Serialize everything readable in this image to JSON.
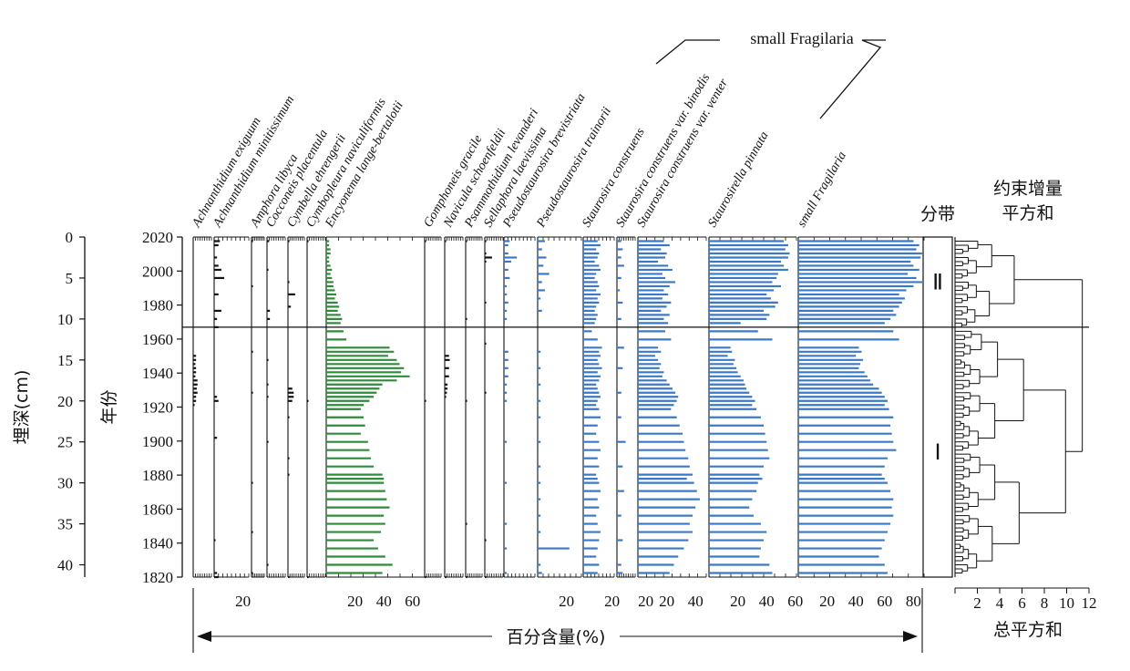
{
  "colors": {
    "ink": "#111111",
    "green": "#2e8b3a",
    "blue": "#3a78c9"
  },
  "labels": {
    "depth_axis": "埋深(cm)",
    "year_axis": "年份",
    "zone_col": "分带",
    "cluster_title": "约束增量\n平方和",
    "cluster_xlabel": "总平方和",
    "percent_label": "百分含量(%)",
    "small_fragilaria_bracket": "small Fragilaria"
  },
  "zones": [
    {
      "name": "Ⅱ",
      "from_cm": 0,
      "to_cm": 11
    },
    {
      "name": "Ⅰ",
      "from_cm": 11,
      "to_cm": 41.5
    }
  ],
  "chart_data": {
    "type": "bar",
    "title": "",
    "orientation": "horizontal",
    "depth_ticks_cm": [
      0,
      5,
      10,
      15,
      20,
      25,
      30,
      35,
      40
    ],
    "year_ticks": [
      2020,
      2000,
      1980,
      1960,
      1940,
      1920,
      1900,
      1880,
      1860,
      1840,
      1820
    ],
    "depth_range_cm": [
      0,
      41.5
    ],
    "year_range": [
      2020,
      1820
    ],
    "zone_boundary_cm": 11,
    "cluster_axis": {
      "ticks": [
        2,
        4,
        6,
        8,
        10,
        12
      ],
      "range": [
        0,
        12
      ]
    },
    "taxa": [
      {
        "name": "Achnanthidium exiguum",
        "color": "ink",
        "ticks": [],
        "xmax": 5,
        "depths": [
          14.5,
          15,
          15.5,
          16,
          16.5,
          17,
          17.5,
          18,
          18.5,
          19,
          19.5,
          20,
          20.5
        ],
        "values": [
          2,
          2,
          1.5,
          2,
          2,
          1.5,
          3,
          3,
          2.5,
          3,
          2,
          2,
          1
        ]
      },
      {
        "name": "Achnanthidium minitissimum",
        "color": "ink",
        "ticks": [
          20
        ],
        "xmax": 30,
        "depths": [
          0.5,
          1,
          2.5,
          3.5,
          4,
          5,
          7,
          9,
          10,
          11,
          19.5,
          20,
          24.5,
          37,
          41,
          41.5
        ],
        "values": [
          4,
          3,
          2,
          3,
          5,
          7,
          3,
          5,
          2,
          3,
          2,
          3,
          2,
          1,
          2,
          3
        ]
      },
      {
        "name": "Amphora libyca",
        "color": "ink",
        "ticks": [],
        "xmax": 8,
        "depths": [
          0.5,
          6,
          14,
          19,
          30,
          36,
          41
        ],
        "values": [
          1,
          1,
          1,
          1,
          1,
          1,
          1
        ]
      },
      {
        "name": "Cocconeis placentula",
        "color": "ink",
        "ticks": [],
        "xmax": 8,
        "depths": [
          0.5,
          4,
          9,
          10,
          15,
          18,
          19.5,
          25,
          40
        ],
        "values": [
          1.5,
          1,
          2,
          2,
          1,
          1,
          1,
          1,
          1
        ]
      },
      {
        "name": "Cymbella ehrengerii",
        "color": "ink",
        "ticks": [],
        "xmax": 8,
        "depths": [
          0.5,
          5.5,
          7,
          8.5,
          18.5,
          19,
          19.5,
          20,
          22,
          27,
          29,
          41.5
        ],
        "values": [
          1,
          1,
          5,
          2,
          3,
          4,
          4,
          3,
          1,
          1,
          1,
          1
        ]
      },
      {
        "name": "Cymbopleura naviculiformis",
        "color": "ink",
        "ticks": [],
        "xmax": 8,
        "depths": [
          0.5,
          20,
          41.5
        ],
        "values": [
          1,
          1,
          1
        ]
      },
      {
        "name": "Encyonema lange-bertalotii",
        "color": "green",
        "ticks": [
          20,
          40,
          60
        ],
        "xmax": 110,
        "depths": [
          0.5,
          1,
          1.5,
          2,
          2.5,
          3,
          3.5,
          4,
          4.5,
          5,
          5.5,
          6,
          6.5,
          7,
          7.5,
          8,
          8.5,
          9,
          9.5,
          10,
          10.5,
          11.5,
          12.5,
          13.5,
          14,
          14.5,
          15,
          15.5,
          16,
          16.5,
          17,
          17.5,
          18,
          18.5,
          19,
          19.5,
          20,
          20.5,
          21,
          22,
          23,
          24,
          25,
          26,
          27,
          28,
          29,
          29.5,
          30,
          31,
          32,
          33,
          34,
          35,
          36,
          37,
          38,
          39,
          40,
          41
        ],
        "values": [
          2,
          2,
          3,
          3,
          2,
          2,
          3,
          4,
          3,
          4,
          5,
          5,
          6,
          7,
          6,
          8,
          9,
          8,
          10,
          11,
          10,
          12,
          14,
          44,
          47,
          43,
          49,
          51,
          54,
          52,
          58,
          49,
          39,
          37,
          35,
          33,
          30,
          26,
          24,
          26,
          27,
          24,
          29,
          30,
          31,
          33,
          39,
          40,
          40,
          41,
          42,
          44,
          40,
          41,
          38,
          33,
          36,
          41,
          46,
          39
        ]
      },
      {
        "name": "Gomphoneis gracile",
        "color": "ink",
        "ticks": [],
        "xmax": 8,
        "depths": [
          0.5,
          20,
          41.5
        ],
        "values": [
          1,
          1,
          1
        ]
      },
      {
        "name": "Navicula schoenfeldii",
        "color": "ink",
        "ticks": [],
        "xmax": 8,
        "depths": [
          0.5,
          14.5,
          15,
          16,
          17,
          18,
          18.5,
          19,
          19.5,
          41.5
        ],
        "values": [
          1,
          3,
          3.5,
          3,
          3,
          2,
          2,
          1.5,
          1,
          1
        ]
      },
      {
        "name": "Psammothidium levanderi",
        "color": "ink",
        "ticks": [],
        "xmax": 8,
        "depths": [
          0.5,
          10,
          20,
          35,
          41.5
        ],
        "values": [
          1,
          1,
          1,
          1,
          1
        ]
      },
      {
        "name": "Sellaphora laevissima",
        "color": "ink",
        "ticks": [],
        "xmax": 8,
        "depths": [
          0.5,
          2,
          2.5,
          3,
          8,
          13,
          19,
          37,
          41.5
        ],
        "values": [
          1,
          1,
          5,
          1,
          1,
          1,
          1,
          1,
          1
        ]
      },
      {
        "name": "Pseudostaurosira brevistriata",
        "color": "blue",
        "ticks": [],
        "xmax": 16,
        "depths": [
          0.5,
          1,
          2,
          2.5,
          3,
          4,
          5,
          6,
          7,
          8,
          9,
          10,
          14,
          15,
          16,
          17,
          18,
          19,
          20,
          25,
          30,
          35,
          38,
          41
        ],
        "values": [
          4,
          3,
          3,
          9,
          5,
          3,
          4,
          2,
          2,
          3,
          2,
          2,
          3,
          3,
          3,
          3,
          2,
          2,
          2,
          2,
          2,
          2,
          2,
          2
        ]
      },
      {
        "name": "Pseudostaurosira trainorii",
        "color": "blue",
        "ticks": [
          20
        ],
        "xmax": 30,
        "depths": [
          0.5,
          1.5,
          2.5,
          3.5,
          4.5,
          5.5,
          6.5,
          7.5,
          9,
          14,
          16,
          18,
          20,
          22,
          25,
          28,
          30,
          32,
          34,
          36,
          38,
          40,
          41
        ],
        "values": [
          5,
          3,
          6,
          4,
          8,
          3,
          5,
          2,
          3,
          2,
          2,
          2,
          2,
          2,
          2,
          2,
          2,
          2,
          2,
          2,
          22,
          2,
          3
        ]
      },
      {
        "name": "Staurosira construens",
        "color": "blue",
        "ticks": [
          20
        ],
        "xmax": 30,
        "depths": [
          0.5,
          1,
          1.5,
          2,
          2.5,
          3,
          3.5,
          4,
          4.5,
          5,
          5.5,
          6,
          6.5,
          7,
          7.5,
          8,
          8.5,
          9,
          9.5,
          10,
          10.5,
          11.5,
          12.5,
          13.5,
          14,
          14.5,
          15,
          15.5,
          16,
          16.5,
          17,
          17.5,
          18,
          18.5,
          19,
          19.5,
          20,
          20.5,
          21,
          22,
          23,
          24,
          25,
          26,
          27,
          28,
          29,
          29.5,
          30,
          31,
          32,
          33,
          34,
          35,
          36,
          37,
          38,
          39,
          40,
          41
        ],
        "values": [
          10,
          12,
          9,
          11,
          10,
          8,
          11,
          12,
          9,
          8,
          10,
          11,
          9,
          12,
          10,
          11,
          9,
          8,
          10,
          9,
          8,
          6,
          10,
          13,
          11,
          12,
          10,
          11,
          13,
          10,
          12,
          11,
          9,
          10,
          11,
          12,
          10,
          9,
          11,
          12,
          10,
          9,
          11,
          12,
          10,
          11,
          9,
          10,
          11,
          12,
          10,
          11,
          9,
          10,
          12,
          11,
          10,
          9,
          11,
          10
        ]
      },
      {
        "name": "Staurosira construens var. binodis",
        "color": "blue",
        "ticks": [
          20
        ],
        "xmax": 30,
        "depths": [
          0.5,
          1.5,
          2.5,
          3.5,
          5,
          6.5,
          8,
          10,
          13.5,
          16,
          19,
          22,
          25,
          28,
          31,
          34,
          37,
          40,
          41
        ],
        "values": [
          3,
          4,
          3,
          5,
          3,
          2,
          4,
          3,
          5,
          4,
          3,
          3,
          6,
          4,
          5,
          3,
          4,
          3,
          4
        ]
      },
      {
        "name": "Staurosira construens var. venter",
        "color": "blue",
        "ticks": [
          20,
          40
        ],
        "xmax": 60,
        "depths": [
          0.5,
          1,
          1.5,
          2,
          2.5,
          3,
          3.5,
          4,
          4.5,
          5,
          5.5,
          6,
          6.5,
          7,
          7.5,
          8,
          8.5,
          9,
          9.5,
          10,
          10.5,
          11.5,
          12.5,
          13.5,
          14,
          14.5,
          15,
          15.5,
          16,
          16.5,
          17,
          17.5,
          18,
          18.5,
          19,
          19.5,
          20,
          20.5,
          21,
          22,
          23,
          24,
          25,
          26,
          27,
          28,
          29,
          29.5,
          30,
          31,
          32,
          33,
          34,
          35,
          36,
          37,
          38,
          39,
          40,
          41
        ],
        "values": [
          18,
          22,
          16,
          20,
          19,
          14,
          21,
          24,
          17,
          19,
          26,
          22,
          18,
          21,
          17,
          23,
          20,
          16,
          22,
          18,
          21,
          19,
          23,
          14,
          16,
          12,
          14,
          16,
          15,
          18,
          17,
          20,
          22,
          24,
          26,
          28,
          27,
          25,
          23,
          27,
          29,
          31,
          32,
          33,
          35,
          36,
          38,
          34,
          39,
          41,
          43,
          40,
          38,
          36,
          38,
          35,
          32,
          28,
          25,
          22
        ]
      },
      {
        "name": "Staurosirella pinnata",
        "color": "blue",
        "ticks": [
          20,
          40,
          60
        ],
        "xmax": 82,
        "depths": [
          0.5,
          1,
          1.5,
          2,
          2.5,
          3,
          3.5,
          4,
          4.5,
          5,
          5.5,
          6,
          6.5,
          7,
          7.5,
          8,
          8.5,
          9,
          9.5,
          10,
          10.5,
          11.5,
          12.5,
          13.5,
          14,
          14.5,
          15,
          15.5,
          16,
          16.5,
          17,
          17.5,
          18,
          18.5,
          19,
          19.5,
          20,
          20.5,
          21,
          22,
          23,
          24,
          25,
          26,
          27,
          28,
          29,
          29.5,
          30,
          31,
          32,
          33,
          34,
          35,
          36,
          37,
          38,
          39,
          40,
          41
        ],
        "values": [
          52,
          55,
          53,
          56,
          55,
          50,
          52,
          55,
          48,
          47,
          44,
          50,
          45,
          40,
          43,
          48,
          46,
          38,
          42,
          40,
          22,
          34,
          44,
          15,
          16,
          13,
          18,
          17,
          19,
          20,
          22,
          24,
          25,
          26,
          28,
          30,
          32,
          30,
          33,
          36,
          38,
          39,
          40,
          41,
          42,
          38,
          35,
          37,
          34,
          33,
          30,
          28,
          31,
          36,
          40,
          38,
          36,
          35,
          42,
          44
        ]
      },
      {
        "name": "small Fragilaria",
        "color": "blue",
        "ticks": [
          20,
          40,
          60,
          80
        ],
        "xmax": 100,
        "depths": [
          0.5,
          1,
          1.5,
          2,
          2.5,
          3,
          3.5,
          4,
          4.5,
          5,
          5.5,
          6,
          6.5,
          7,
          7.5,
          8,
          8.5,
          9,
          9.5,
          10,
          10.5,
          11.5,
          12.5,
          13.5,
          14,
          14.5,
          15,
          15.5,
          16,
          16.5,
          17,
          17.5,
          18,
          18.5,
          19,
          19.5,
          20,
          20.5,
          21,
          22,
          23,
          24,
          25,
          26,
          27,
          28,
          29,
          29.5,
          30,
          31,
          32,
          33,
          34,
          35,
          36,
          37,
          38,
          39,
          40,
          41
        ],
        "values": [
          80,
          84,
          82,
          86,
          85,
          78,
          80,
          84,
          76,
          82,
          86,
          80,
          75,
          70,
          74,
          72,
          70,
          66,
          68,
          64,
          60,
          66,
          70,
          42,
          44,
          40,
          45,
          43,
          42,
          46,
          48,
          50,
          52,
          56,
          58,
          60,
          62,
          60,
          63,
          66,
          64,
          65,
          66,
          68,
          62,
          60,
          58,
          60,
          62,
          64,
          66,
          65,
          66,
          64,
          62,
          60,
          58,
          56,
          60,
          62
        ]
      }
    ],
    "groups": [
      {
        "label": "small Fragilaria",
        "taxa": [
          "Pseudostaurosira brevistriata",
          "Pseudostaurosira trainorii",
          "Staurosira construens",
          "Staurosira construens var. binodis",
          "Staurosira construens var. venter",
          "Staurosirella pinnata"
        ]
      }
    ]
  }
}
